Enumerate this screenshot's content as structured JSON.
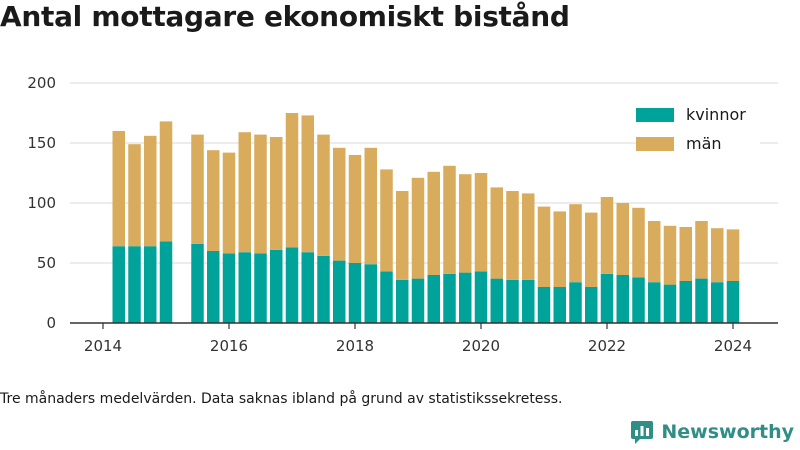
{
  "title": "Antal mottagare ekonomiskt bistånd",
  "footnote": "Tre månaders medelvärden. Data saknas ibland på grund av statistikssekretess.",
  "brand": "Newsworthy",
  "colors": {
    "kvinnor": "#00a39a",
    "man": "#d9ac5d",
    "grid": "#d9d9d9",
    "brand": "#2f8f86"
  },
  "chart_data": {
    "type": "bar",
    "stacked": true,
    "title": "Antal mottagare ekonomiskt bistånd",
    "ylim": [
      0,
      200
    ],
    "y_ticks": [
      0,
      50,
      100,
      150,
      200
    ],
    "x_tick_labels": [
      "2014",
      "2016",
      "2018",
      "2020",
      "2022",
      "2024"
    ],
    "legend_position": "top-right",
    "grid": true,
    "categories": [
      "2014-Q2",
      "2014-Q3",
      "2014-Q4",
      "2015-Q1",
      "2015-Q2",
      "2015-Q3",
      "2015-Q4",
      "2016-Q1",
      "2016-Q2",
      "2016-Q3",
      "2016-Q4",
      "2017-Q1",
      "2017-Q2",
      "2017-Q3",
      "2017-Q4",
      "2018-Q1",
      "2018-Q2",
      "2018-Q3",
      "2018-Q4",
      "2019-Q1",
      "2019-Q2",
      "2019-Q3",
      "2019-Q4",
      "2020-Q1",
      "2020-Q2",
      "2020-Q3",
      "2020-Q4",
      "2021-Q1",
      "2021-Q2",
      "2021-Q3",
      "2021-Q4",
      "2022-Q1",
      "2022-Q2",
      "2022-Q3",
      "2022-Q4",
      "2023-Q1",
      "2023-Q2",
      "2023-Q3",
      "2023-Q4",
      "2024-Q1"
    ],
    "series": [
      {
        "name": "kvinnor",
        "values": [
          64,
          64,
          64,
          68,
          null,
          66,
          60,
          58,
          59,
          58,
          61,
          63,
          59,
          56,
          52,
          50,
          49,
          43,
          36,
          37,
          40,
          41,
          42,
          43,
          37,
          36,
          36,
          30,
          30,
          34,
          30,
          41,
          40,
          38,
          34,
          32,
          35,
          37,
          34,
          35
        ]
      },
      {
        "name": "män",
        "values": [
          96,
          85,
          92,
          100,
          null,
          91,
          84,
          84,
          100,
          99,
          94,
          112,
          114,
          101,
          94,
          90,
          97,
          85,
          74,
          84,
          86,
          90,
          82,
          82,
          76,
          74,
          72,
          67,
          63,
          65,
          62,
          64,
          60,
          58,
          51,
          49,
          45,
          48,
          45,
          43
        ]
      }
    ]
  }
}
